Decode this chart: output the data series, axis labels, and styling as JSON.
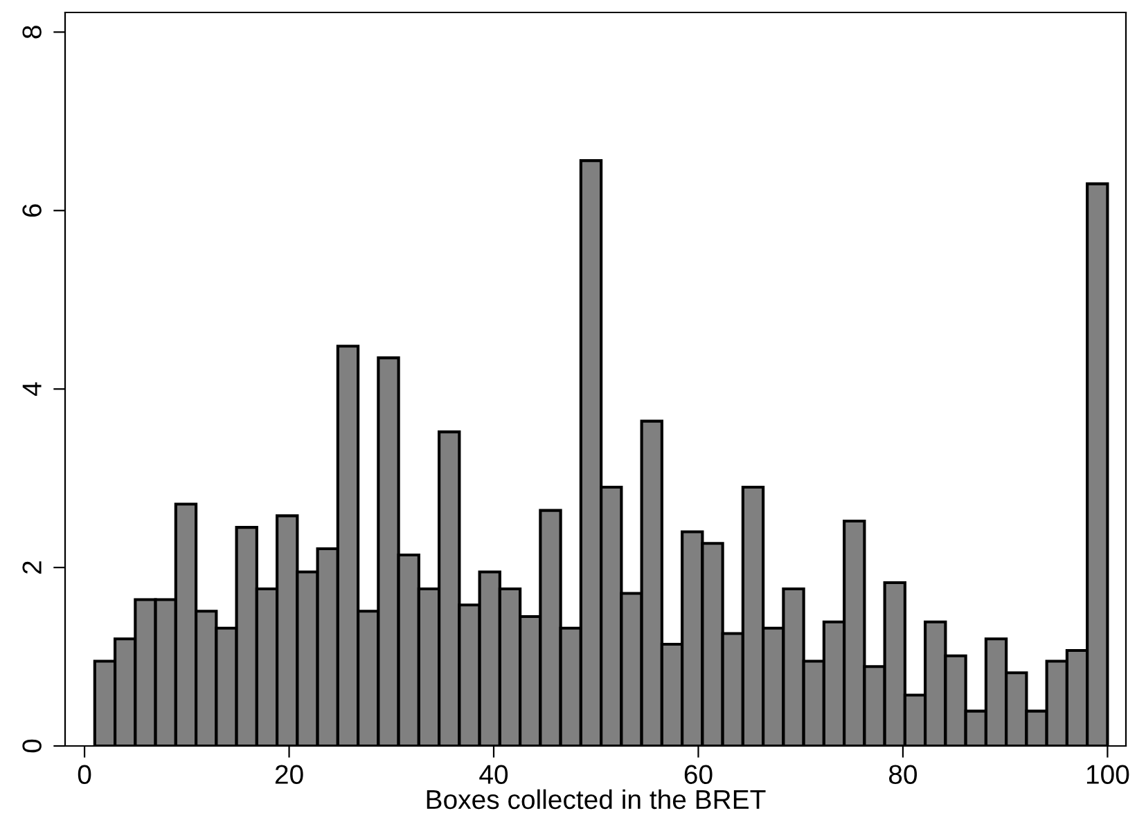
{
  "chart_data": {
    "type": "histogram",
    "xlabel": "Boxes collected in the BRET",
    "bins": [
      1,
      2.98,
      4.96,
      6.94,
      8.92,
      10.9,
      12.88,
      14.86,
      16.84,
      18.82,
      20.8,
      22.78,
      24.76,
      26.74,
      28.72,
      30.7,
      32.68,
      34.66,
      36.64,
      38.62,
      40.6,
      42.58,
      44.56,
      46.54,
      48.52,
      50.5,
      52.48,
      54.46,
      56.44,
      58.42,
      60.4,
      62.38,
      64.36,
      66.34,
      68.32,
      70.3,
      72.28,
      74.26,
      76.24,
      78.22,
      80.2,
      82.18,
      84.16,
      86.14,
      88.12,
      90.1,
      92.08,
      94.06,
      96.04,
      98.02,
      100
    ],
    "values": [
      0.95,
      1.2,
      1.64,
      1.64,
      2.71,
      1.51,
      1.32,
      2.45,
      1.76,
      2.58,
      1.95,
      2.21,
      4.48,
      1.51,
      4.35,
      2.14,
      1.76,
      3.52,
      1.58,
      1.95,
      1.76,
      1.45,
      2.64,
      1.32,
      6.56,
      2.9,
      1.71,
      3.64,
      1.14,
      2.4,
      2.27,
      1.26,
      2.9,
      1.32,
      1.76,
      0.95,
      1.39,
      2.52,
      0.89,
      1.83,
      0.57,
      1.39,
      1.01,
      0.39,
      1.2,
      0.82,
      0.39,
      0.95,
      1.07,
      6.3
    ],
    "color": "#808080",
    "xlim": [
      -1.9,
      101.8
    ],
    "ylim": [
      0,
      8.22
    ],
    "xticks": [
      0,
      20,
      40,
      60,
      80,
      100
    ],
    "yticks": [
      0,
      2,
      4,
      6,
      8
    ],
    "grid": false
  }
}
